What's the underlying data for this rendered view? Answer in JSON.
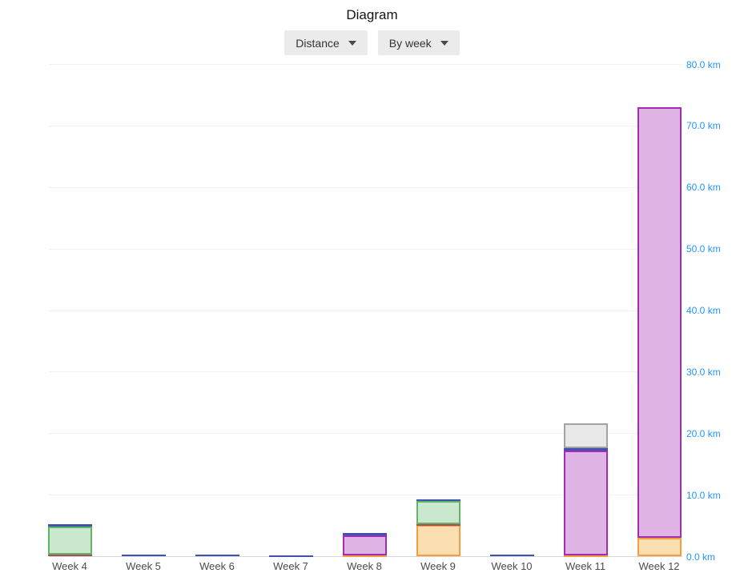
{
  "header": {
    "title": "Diagram"
  },
  "controls": {
    "metric_dropdown": {
      "label": "Distance",
      "icon": "chevron-down-icon"
    },
    "grouping_dropdown": {
      "label": "By week",
      "icon": "chevron-down-icon"
    }
  },
  "chart_data": {
    "type": "bar",
    "subtype": "stacked",
    "title": "Diagram",
    "unit": "km",
    "grid": true,
    "y_axis": {
      "side": "right",
      "min": 0,
      "max": 80,
      "tick_step": 10,
      "ticks": [
        0,
        10,
        20,
        30,
        40,
        50,
        60,
        70,
        80
      ],
      "tick_labels": [
        "0.0 km",
        "10.0 km",
        "20.0 km",
        "30.0 km",
        "40.0 km",
        "50.0 km",
        "60.0 km",
        "70.0 km",
        "80.0 km"
      ],
      "label_color": "#2196F3"
    },
    "categories": [
      "Week 4",
      "Week 5",
      "Week 6",
      "Week 7",
      "Week 8",
      "Week 9",
      "Week 10",
      "Week 11",
      "Week 12"
    ],
    "colors": {
      "orange": {
        "stroke": "#F59D3F",
        "fill": "#FBDFB0"
      },
      "red": {
        "stroke": "#B04A5E",
        "fill": "#E7C6CD"
      },
      "green": {
        "stroke": "#5CB863",
        "fill": "#CBE8CE"
      },
      "purple": {
        "stroke": "#A32CB0",
        "fill": "#DFB3E3"
      },
      "blue": {
        "stroke": "#3F51B5",
        "fill": "#B7BEE8"
      },
      "gray": {
        "stroke": "#A2A2A2",
        "fill": "#E8E8E8"
      }
    },
    "stacks": [
      {
        "category": "Week 4",
        "total_km": 5.3,
        "segments": [
          {
            "series": "red",
            "km": 0.3
          },
          {
            "series": "green",
            "km": 4.6
          },
          {
            "series": "blue",
            "km": 0.4
          }
        ]
      },
      {
        "category": "Week 5",
        "total_km": 0.3,
        "segments": [
          {
            "series": "blue",
            "km": 0.3
          }
        ]
      },
      {
        "category": "Week 6",
        "total_km": 0.3,
        "segments": [
          {
            "series": "blue",
            "km": 0.3
          }
        ]
      },
      {
        "category": "Week 7",
        "total_km": 0.25,
        "segments": [
          {
            "series": "blue",
            "km": 0.25
          }
        ]
      },
      {
        "category": "Week 8",
        "total_km": 3.8,
        "segments": [
          {
            "series": "orange",
            "km": 0.25
          },
          {
            "series": "purple",
            "km": 3.2
          },
          {
            "series": "blue",
            "km": 0.35
          }
        ]
      },
      {
        "category": "Week 9",
        "total_km": 9.3,
        "segments": [
          {
            "series": "orange",
            "km": 5.1
          },
          {
            "series": "red",
            "km": 0.2
          },
          {
            "series": "green",
            "km": 3.7
          },
          {
            "series": "blue",
            "km": 0.3
          }
        ]
      },
      {
        "category": "Week 10",
        "total_km": 0.3,
        "segments": [
          {
            "series": "blue",
            "km": 0.3
          }
        ]
      },
      {
        "category": "Week 11",
        "total_km": 21.7,
        "segments": [
          {
            "series": "orange",
            "km": 0.2
          },
          {
            "series": "purple",
            "km": 17.0
          },
          {
            "series": "blue",
            "km": 0.4
          },
          {
            "series": "gray",
            "km": 4.1
          }
        ]
      },
      {
        "category": "Week 12",
        "total_km": 73.1,
        "segments": [
          {
            "series": "orange",
            "km": 3.1
          },
          {
            "series": "purple",
            "km": 70.0
          }
        ]
      }
    ]
  }
}
